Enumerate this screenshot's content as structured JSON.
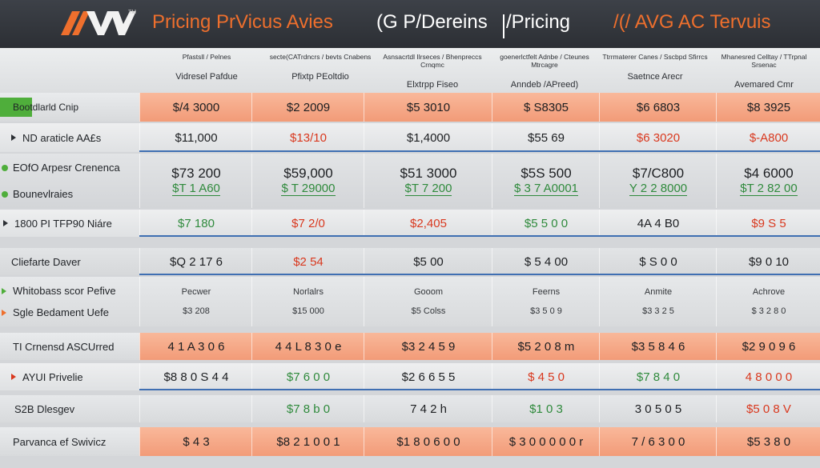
{
  "header": {
    "logo_text": "AVV",
    "logo_sup": "TM",
    "title_part1": "Pricing PrVicus Avies",
    "title_part2": "(G P/Dereins",
    "title_part3": "/Pricing",
    "title_part4": "/(/ AVG AC Tervuis",
    "colors": {
      "accent": "#ee6f2d",
      "header_bg": "#2c2f34",
      "highlight_row": "#f6a788",
      "green_tab": "#4fae3b",
      "grid_line": "#3f6fb2"
    }
  },
  "columns": [
    {
      "sub": "Pfastsll / Pelnes",
      "name": "Vidresel Pafdue"
    },
    {
      "sub": "secte(CATrdncrs / bevts Cnabens",
      "name": "Pfixtp PEoltdio"
    },
    {
      "sub": "Asnsacrtdl Ilrseces / Bhenpreccs Crnqmc",
      "name": "Elxtrpp Fiseo"
    },
    {
      "sub": "goenerlctfelt Adnbe / Cteunes Mtrcagre",
      "name": "Anndeb /APreed)"
    },
    {
      "sub": "Ttrrmaterer Canes / Sscbpd Sfirrcs",
      "name": "Saetnce Arecr"
    },
    {
      "sub": "Mhanesred Celltay / TTrpnal Srsenac",
      "name": "Avemared Cmr"
    }
  ],
  "rows": [
    {
      "id": "bootstrap",
      "labels": [
        "Bootdlarld Cnip"
      ],
      "cells": [
        [
          "$/4 3000"
        ],
        [
          "$2 2009"
        ],
        [
          "$5 3010"
        ],
        [
          "$ S8305"
        ],
        [
          "$6 6803"
        ],
        [
          "$8 3925"
        ]
      ]
    },
    {
      "id": "nd-aarticle",
      "labels": [
        "ND araticle AA£s"
      ],
      "cells": [
        [
          "$11,000"
        ],
        [
          "$13/10"
        ],
        [
          "$1,4000"
        ],
        [
          "$55 69"
        ],
        [
          "$6 3020"
        ],
        [
          "$-A800"
        ]
      ]
    },
    {
      "id": "eofo",
      "labels": [
        "EOfO Arpesr Crenenca",
        "Bounevlraies"
      ],
      "cells": [
        [
          "$73 200",
          "$T 1 A60"
        ],
        [
          "$59,000",
          "$ T 29000"
        ],
        [
          "$51 3000",
          "$T 7 200"
        ],
        [
          "$5S 500",
          "$ 3 7 A0001"
        ],
        [
          "$7/C800",
          "Y 2 2 8000"
        ],
        [
          "$4 6000",
          "$T 2 82 00"
        ]
      ]
    },
    {
      "id": "pitfpo",
      "labels": [
        "1800 PI TFP90 Niáre"
      ],
      "cells": [
        [
          "$7 180"
        ],
        [
          "$7 2/0"
        ],
        [
          "$2,405"
        ],
        [
          "$5 5 0 0"
        ],
        [
          "4A 4 B0"
        ],
        [
          "$9 S 5"
        ]
      ]
    },
    {
      "id": "cefarte",
      "labels": [
        "Cliefarte Daver"
      ],
      "cells": [
        [
          "$Q 2 17 6"
        ],
        [
          "$2 54"
        ],
        [
          "$5 00"
        ],
        [
          "$ 5 4 00"
        ],
        [
          "$ S 0 0"
        ],
        [
          "$9 0 10"
        ]
      ]
    },
    {
      "id": "whitobass",
      "labels": [
        "Whitobass scor Pefive",
        "Sgle Bedament Uefe"
      ],
      "cells": [
        [
          "Pecwer",
          "$3 208"
        ],
        [
          "Norlalrs",
          "$15 000"
        ],
        [
          "Gooom",
          "$5 Colss"
        ],
        [
          "Feerns",
          "$3 5 0 9"
        ],
        [
          "Anmite",
          "$3 3 2 5"
        ],
        [
          "Achrove",
          "$ 3 2 8 0"
        ]
      ]
    },
    {
      "id": "tcmensd",
      "labels": [
        "TI Crnensd ASCUrred"
      ],
      "cells": [
        [
          "4 1 A 3 0 6"
        ],
        [
          "4 4 L 8 3 0 e"
        ],
        [
          "$3 2 4 5 9"
        ],
        [
          "$5 2 0 8 m"
        ],
        [
          "$3 5 8 4 6"
        ],
        [
          "$2 9 0 9 6"
        ]
      ]
    },
    {
      "id": "avi-privelie",
      "labels": [
        "AYUI Privelie"
      ],
      "cells": [
        [
          "$8 8 0 S 4 4"
        ],
        [
          "$7 6 0 0"
        ],
        [
          "$2 6 6 5 5"
        ],
        [
          "$ 4 5 0"
        ],
        [
          "$7 8 4 0"
        ],
        [
          "4 8 0 0 0"
        ]
      ]
    },
    {
      "id": "s2b-dlesgev",
      "labels": [
        "S2B Dlesgev"
      ],
      "cells": [
        [
          "",
          ""
        ],
        [
          "$7 8 b 0"
        ],
        [
          "7 4 2 h"
        ],
        [
          "$1 0 3"
        ],
        [
          "3 0 5 0 5"
        ],
        [
          "$5 0 8 V"
        ]
      ]
    },
    {
      "id": "parvanca",
      "labels": [
        "Parvanca ef Swivicz"
      ],
      "cells": [
        [
          "$ 4 3"
        ],
        [
          "$8 2 1 0 0 1"
        ],
        [
          "$1 8 0 6 0 0"
        ],
        [
          "$ 3 0 0 0 0 0 r"
        ],
        [
          "7 / 6 3 0 0"
        ],
        [
          "$5 3 8 0"
        ]
      ]
    }
  ]
}
